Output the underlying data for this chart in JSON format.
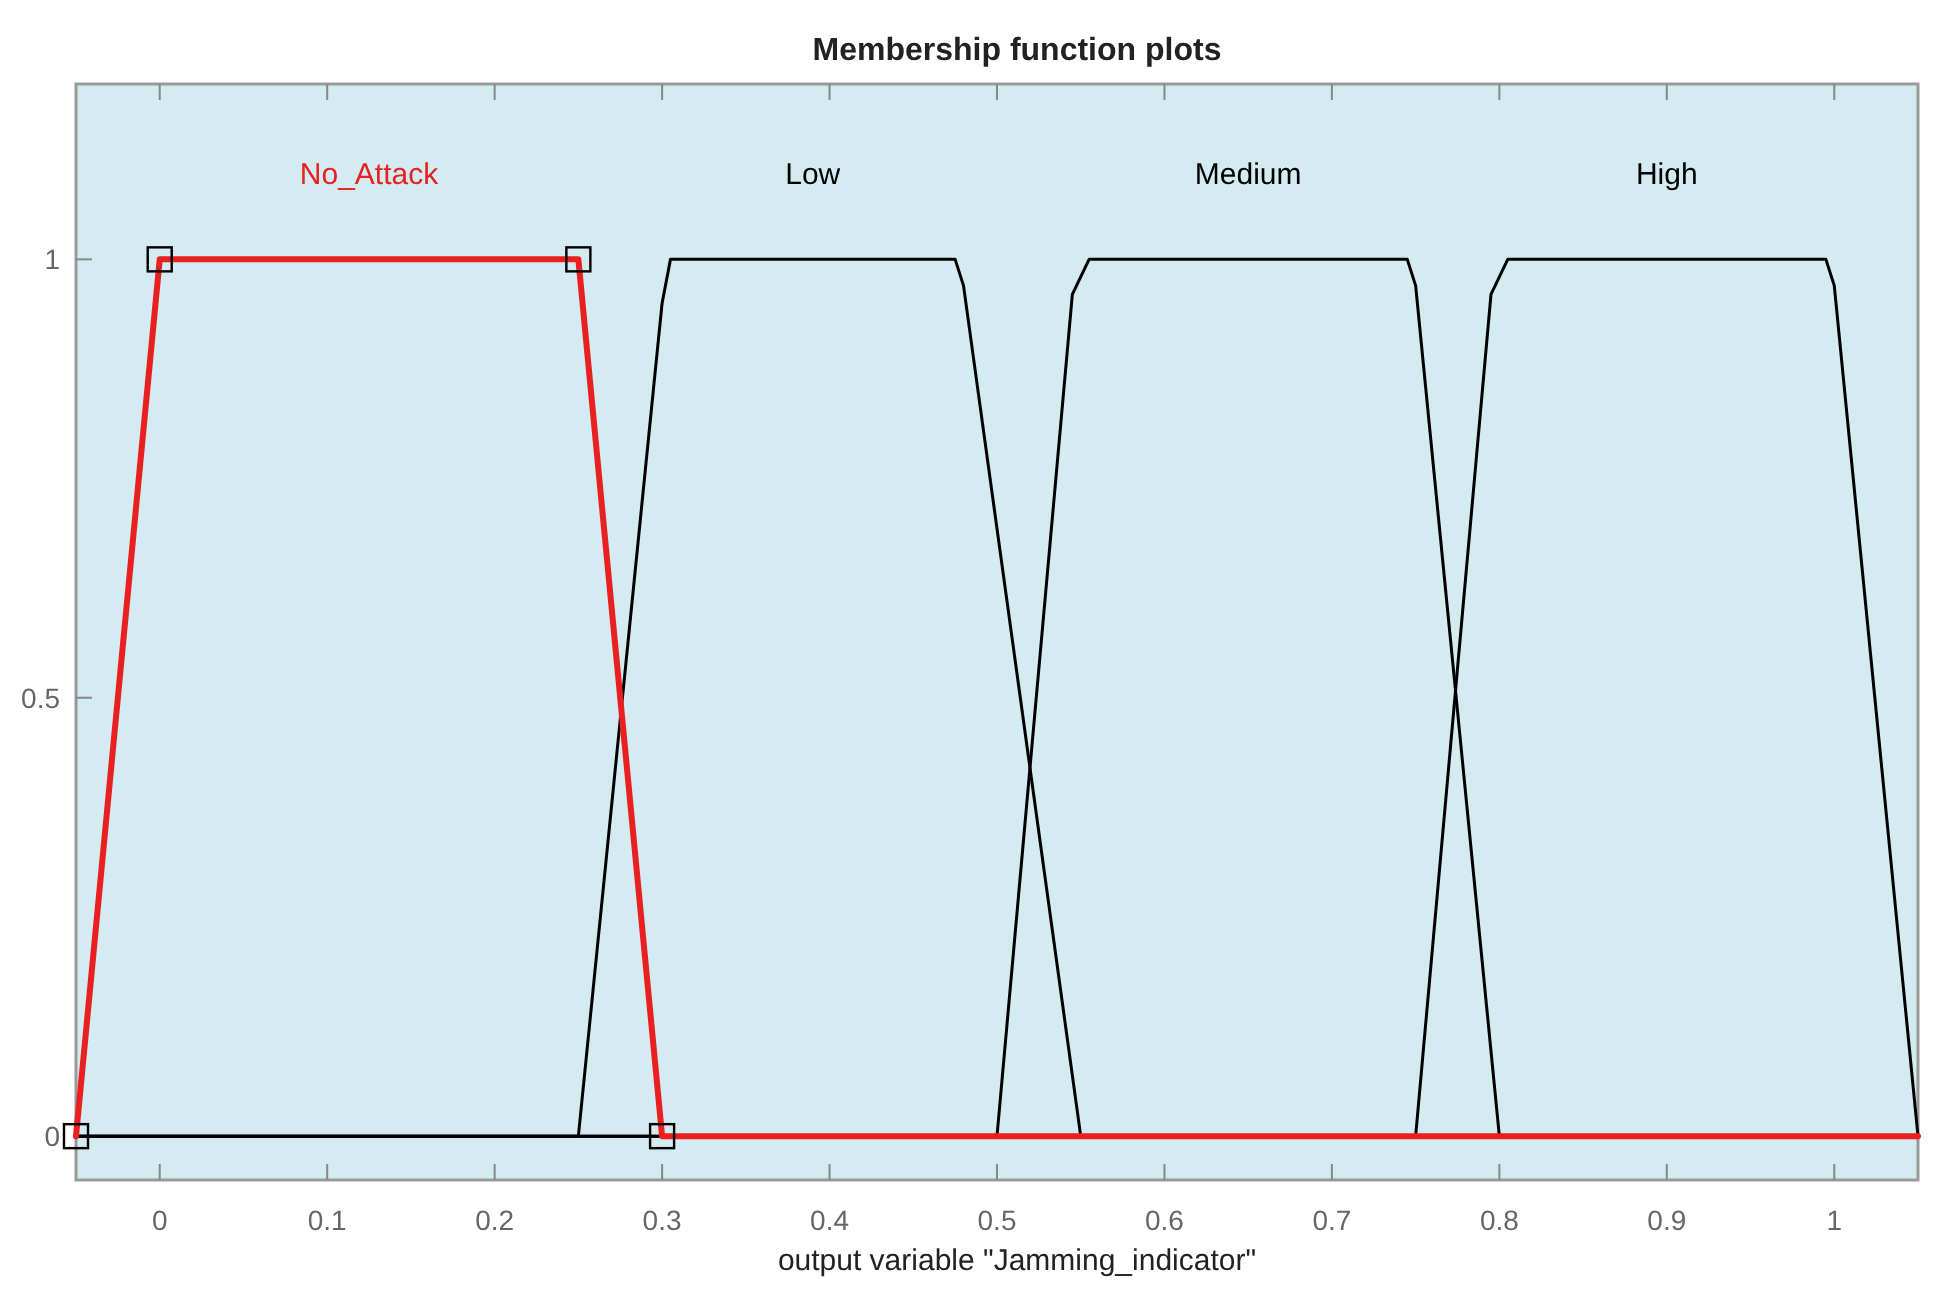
{
  "chart_data": {
    "type": "line",
    "title": "Membership function plots",
    "xlabel": "output variable \"Jamming_indicator\"",
    "xlim": [
      -0.05,
      1.05
    ],
    "xticks": [
      0,
      0.1,
      0.2,
      0.3,
      0.4,
      0.5,
      0.6,
      0.7,
      0.8,
      0.9,
      1
    ],
    "ylim": [
      -0.05,
      1.2
    ],
    "yticks": [
      0,
      0.5,
      1
    ],
    "grid": false,
    "line_style": "solid",
    "series": [
      {
        "name": "No_Attack",
        "color": "#e8201f",
        "marker": "square",
        "x": [
          -0.05,
          0,
          0.25,
          0.3,
          1.05
        ],
        "values": [
          0,
          1,
          1,
          0,
          0
        ]
      },
      {
        "name": "Low",
        "color": "#000000",
        "marker": "none",
        "x": [
          -0.05,
          0.25,
          0.3,
          0.305,
          0.475,
          0.48,
          0.55,
          1.05
        ],
        "values": [
          0,
          0,
          0.95,
          1,
          1,
          0.97,
          0,
          0
        ]
      },
      {
        "name": "Medium",
        "color": "#000000",
        "marker": "none",
        "x": [
          -0.05,
          0.5,
          0.545,
          0.555,
          0.745,
          0.75,
          0.8,
          1.05
        ],
        "values": [
          0,
          0,
          0.96,
          1,
          1,
          0.97,
          0,
          0
        ]
      },
      {
        "name": "High",
        "color": "#000000",
        "marker": "none",
        "x": [
          -0.05,
          0.75,
          0.795,
          0.805,
          0.995,
          1,
          1.05
        ],
        "values": [
          0,
          0,
          0.96,
          1,
          1,
          0.97,
          0
        ]
      }
    ]
  }
}
